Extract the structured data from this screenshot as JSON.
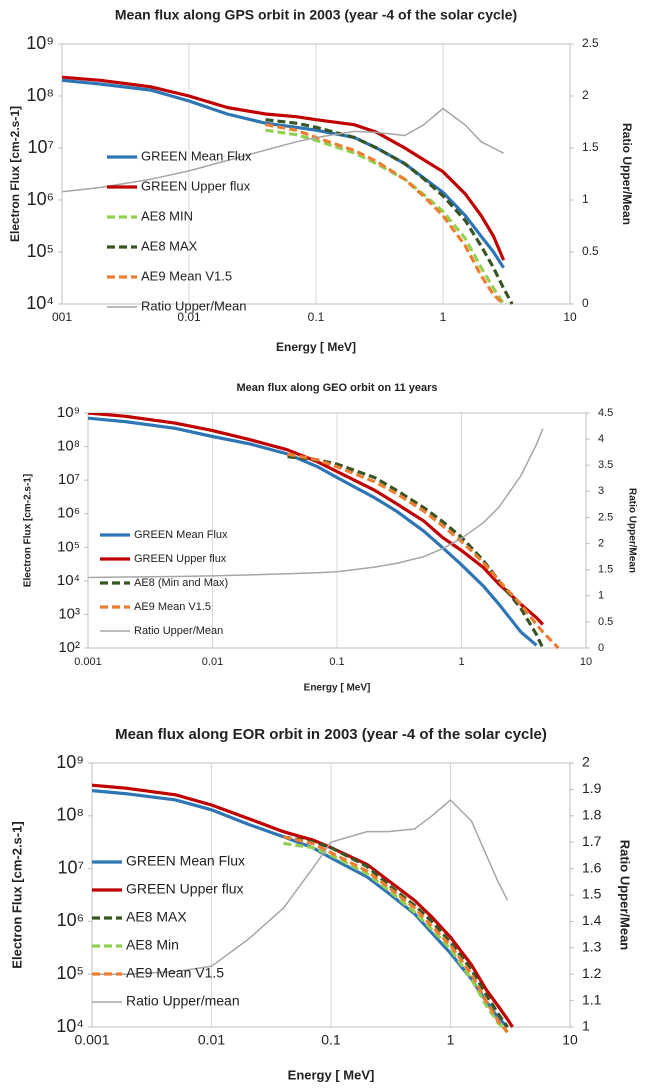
{
  "chart_data": [
    {
      "type": "line",
      "title": "Mean flux along GPS orbit in 2003 (year -4 of the solar cycle)",
      "x_label": "Energy [ MeV]",
      "y_label": "Electron Flux [cm-2.s-1]",
      "y2_label": "Ratio Upper/Mean",
      "xscale": "log",
      "yscale": "log",
      "grid": "x",
      "legend": "left",
      "xlim": [
        0.001,
        10
      ],
      "xticks": [
        {
          "value": 0.001,
          "label": "001"
        },
        0.01,
        0.1,
        1,
        10
      ],
      "ylim": [
        10000.0,
        1000000000.0
      ],
      "yticks": [
        {
          "value": 10000.0,
          "label": "10⁴"
        },
        {
          "value": 100000.0,
          "label": "10⁵"
        },
        {
          "value": 1000000.0,
          "label": "10⁶"
        },
        {
          "value": 10000000.0,
          "label": "10⁷"
        },
        {
          "value": 100000000.0,
          "label": "10⁸"
        },
        {
          "value": 1000000000.0,
          "label": "10⁹"
        }
      ],
      "y2lim": [
        0,
        2.5
      ],
      "y2ticks": [
        0,
        0.5,
        1,
        1.5,
        2,
        2.5
      ],
      "x": [
        0.001,
        0.002,
        0.005,
        0.01,
        0.02,
        0.04,
        0.07,
        0.1,
        0.2,
        0.3,
        0.5,
        0.7,
        1,
        1.5,
        2,
        2.5,
        3,
        3.5
      ],
      "series": [
        {
          "name": "GREEN Mean Flux",
          "color": "#2e75b6",
          "values": [
            200000000.0,
            170000000.0,
            130000000.0,
            80000000.0,
            45000000.0,
            30000000.0,
            25000000.0,
            22000000.0,
            16000000.0,
            10000000.0,
            5000000.0,
            2700000.0,
            1400000.0,
            500000.0,
            200000.0,
            100000.0,
            50000.0,
            null
          ]
        },
        {
          "name": "GREEN Upper flux",
          "color": "#c00000",
          "values": [
            230000000.0,
            200000000.0,
            150000000.0,
            100000000.0,
            60000000.0,
            45000000.0,
            40000000.0,
            35000000.0,
            28000000.0,
            20000000.0,
            10000000.0,
            6000000.0,
            3500000.0,
            1300000.0,
            500000.0,
            200000.0,
            70000.0,
            null
          ]
        },
        {
          "name": "AE8 MIN",
          "color": "#92d050",
          "dashed": true,
          "values": [
            null,
            null,
            null,
            null,
            null,
            22000000.0,
            18000000.0,
            14000000.0,
            8000000.0,
            5000000.0,
            2500000.0,
            1300000.0,
            600000.0,
            180000.0,
            50000.0,
            20000.0,
            10000.0,
            null
          ]
        },
        {
          "name": "AE8 MAX",
          "color": "#375623",
          "dashed": true,
          "values": [
            null,
            null,
            null,
            null,
            null,
            35000000.0,
            30000000.0,
            25000000.0,
            16000000.0,
            10000000.0,
            5000000.0,
            2600000.0,
            1200000.0,
            400000.0,
            130000.0,
            50000.0,
            20000.0,
            10000.0
          ]
        },
        {
          "name": "AE9 Mean V1.5",
          "color": "#ed7d31",
          "dashed": true,
          "values": [
            null,
            null,
            null,
            null,
            null,
            28000000.0,
            22000000.0,
            16000000.0,
            9000000.0,
            5500000.0,
            2500000.0,
            1200000.0,
            500000.0,
            130000.0,
            35000.0,
            15000.0,
            10000.0,
            null
          ]
        },
        {
          "name": "Ratio Upper/Mean",
          "color": "#a6a6a6",
          "axis": "y2",
          "values": [
            1.08,
            1.12,
            1.2,
            1.28,
            1.38,
            1.48,
            1.56,
            1.6,
            1.66,
            1.65,
            1.62,
            1.72,
            1.88,
            1.72,
            1.56,
            1.5,
            1.45,
            null
          ]
        }
      ]
    },
    {
      "type": "line",
      "title": "Mean flux along GEO orbit on 11 years",
      "x_label": "Energy [ MeV]",
      "y_label": "Electron Flux [cm-2.s-1]",
      "y2_label": "Ratio Upper/Mean",
      "xscale": "log",
      "yscale": "log",
      "grid": "x",
      "legend": "left",
      "xlim": [
        0.001,
        10
      ],
      "xticks": [
        0.001,
        0.01,
        0.1,
        1,
        10
      ],
      "ylim": [
        100,
        1000000000.0
      ],
      "yticks": [
        {
          "value": 100,
          "label": "10²"
        },
        {
          "value": 1000,
          "label": "10³"
        },
        {
          "value": 10000.0,
          "label": "10⁴"
        },
        {
          "value": 100000.0,
          "label": "10⁵"
        },
        {
          "value": 1000000.0,
          "label": "10⁶"
        },
        {
          "value": 10000000.0,
          "label": "10⁷"
        },
        {
          "value": 100000000.0,
          "label": "10⁸"
        },
        {
          "value": 1000000000.0,
          "label": "10⁹"
        }
      ],
      "y2lim": [
        0,
        4.5
      ],
      "y2ticks": [
        0,
        0.5,
        1,
        1.5,
        2,
        2.5,
        3,
        3.5,
        4,
        4.5
      ],
      "x": [
        0.001,
        0.002,
        0.005,
        0.01,
        0.02,
        0.04,
        0.07,
        0.1,
        0.2,
        0.3,
        0.5,
        0.7,
        1,
        1.5,
        2,
        3,
        4,
        4.5,
        5,
        6
      ],
      "series": [
        {
          "name": "GREEN Mean Flux",
          "color": "#2e75b6",
          "values": [
            700000000.0,
            550000000.0,
            350000000.0,
            200000000.0,
            120000000.0,
            60000000.0,
            25000000.0,
            12000000.0,
            3000000.0,
            1200000.0,
            300000.0,
            100000.0,
            30000.0,
            7000.0,
            2000.0,
            300,
            120,
            null,
            null,
            null
          ]
        },
        {
          "name": "GREEN Upper flux",
          "color": "#c00000",
          "values": [
            1000000000.0,
            800000000.0,
            500000000.0,
            300000000.0,
            160000000.0,
            80000000.0,
            35000000.0,
            18000000.0,
            5000000.0,
            2000000.0,
            600000.0,
            200000.0,
            80000.0,
            25000.0,
            8000.0,
            2000.0,
            800,
            500,
            null,
            null
          ]
        },
        {
          "name": "AE8 (Min and Max)",
          "color": "#375623",
          "dashed": true,
          "values": [
            null,
            null,
            null,
            null,
            null,
            50000000.0,
            40000000.0,
            30000000.0,
            12000000.0,
            5000000.0,
            1500000.0,
            600000.0,
            200000.0,
            40000.0,
            10000.0,
            1500.0,
            250,
            100,
            null,
            null
          ]
        },
        {
          "name": "AE9 Mean V1.5",
          "color": "#ed7d31",
          "dashed": true,
          "values": [
            null,
            null,
            null,
            null,
            null,
            60000000.0,
            40000000.0,
            25000000.0,
            9000000.0,
            4000000.0,
            1200000.0,
            450000.0,
            150000.0,
            35000.0,
            10000.0,
            2000.0,
            500,
            300,
            200,
            100
          ]
        },
        {
          "name": "Ratio Upper/Mean",
          "color": "#a6a6a6",
          "axis": "y2",
          "values": [
            1.35,
            1.36,
            1.37,
            1.38,
            1.4,
            1.42,
            1.44,
            1.46,
            1.55,
            1.62,
            1.75,
            1.9,
            2.1,
            2.4,
            2.7,
            3.3,
            3.9,
            4.2,
            null,
            null
          ]
        }
      ]
    },
    {
      "type": "line",
      "title": "Mean flux along EOR orbit in 2003 (year -4 of the solar cycle)",
      "x_label": "Energy [ MeV]",
      "y_label": "Electron Flux [cm-2.s-1]",
      "y2_label": "Ratio Upper/Mean",
      "xscale": "log",
      "yscale": "log",
      "grid": "x",
      "legend": "left",
      "xlim": [
        0.001,
        10
      ],
      "xticks": [
        0.001,
        0.01,
        0.1,
        1,
        10
      ],
      "ylim": [
        10000.0,
        1000000000.0
      ],
      "yticks": [
        {
          "value": 10000.0,
          "label": "10⁴"
        },
        {
          "value": 100000.0,
          "label": "10⁵"
        },
        {
          "value": 1000000.0,
          "label": "10⁶"
        },
        {
          "value": 10000000.0,
          "label": "10⁷"
        },
        {
          "value": 100000000.0,
          "label": "10⁸"
        },
        {
          "value": 1000000000.0,
          "label": "10⁹"
        }
      ],
      "y2lim": [
        1,
        2
      ],
      "y2ticks": [
        1,
        1.1,
        1.2,
        1.3,
        1.4,
        1.5,
        1.6,
        1.7,
        1.8,
        1.9,
        2
      ],
      "x": [
        0.001,
        0.002,
        0.005,
        0.01,
        0.02,
        0.04,
        0.07,
        0.1,
        0.2,
        0.3,
        0.5,
        0.7,
        1,
        1.5,
        2,
        2.5,
        3,
        3.3
      ],
      "series": [
        {
          "name": "GREEN Mean Flux",
          "color": "#2e75b6",
          "values": [
            300000000.0,
            260000000.0,
            200000000.0,
            130000000.0,
            70000000.0,
            40000000.0,
            25000000.0,
            16000000.0,
            7000000.0,
            3500000.0,
            1400000.0,
            600000.0,
            250000.0,
            80000.0,
            30000.0,
            15000.0,
            10000.0,
            null
          ]
        },
        {
          "name": "GREEN Upper flux",
          "color": "#c00000",
          "values": [
            380000000.0,
            330000000.0,
            250000000.0,
            160000000.0,
            90000000.0,
            50000000.0,
            35000000.0,
            25000000.0,
            12000000.0,
            6000000.0,
            2500000.0,
            1200000.0,
            500000.0,
            150000.0,
            50000.0,
            25000.0,
            14000.0,
            10000.0
          ]
        },
        {
          "name": "AE8 MAX",
          "color": "#375623",
          "dashed": true,
          "values": [
            null,
            null,
            null,
            null,
            null,
            40000000.0,
            32000000.0,
            25000000.0,
            11000000.0,
            5000000.0,
            2000000.0,
            1000000.0,
            400000.0,
            120000.0,
            40000.0,
            18000.0,
            10000.0,
            null
          ]
        },
        {
          "name": "AE8 Min",
          "color": "#92d050",
          "dashed": true,
          "values": [
            null,
            null,
            null,
            null,
            null,
            30000000.0,
            25000000.0,
            18000000.0,
            8000000.0,
            4000000.0,
            1500000.0,
            700000.0,
            300000.0,
            80000.0,
            25000.0,
            12000.0,
            8000.0,
            null
          ]
        },
        {
          "name": "AE9 Mean V1.5",
          "color": "#ed7d31",
          "dashed": true,
          "values": [
            null,
            null,
            null,
            null,
            null,
            40000000.0,
            30000000.0,
            20000000.0,
            9000000.0,
            4500000.0,
            1800000.0,
            800000.0,
            350000.0,
            100000.0,
            30000.0,
            13000.0,
            8000.0,
            null
          ]
        },
        {
          "name": "Ratio Upper/mean",
          "color": "#a6a6a6",
          "axis": "y2",
          "values": [
            1.2,
            1.2,
            1.21,
            1.23,
            1.33,
            1.45,
            1.6,
            1.7,
            1.74,
            1.74,
            1.75,
            1.8,
            1.86,
            1.78,
            1.65,
            1.55,
            1.48,
            null
          ]
        }
      ]
    }
  ]
}
